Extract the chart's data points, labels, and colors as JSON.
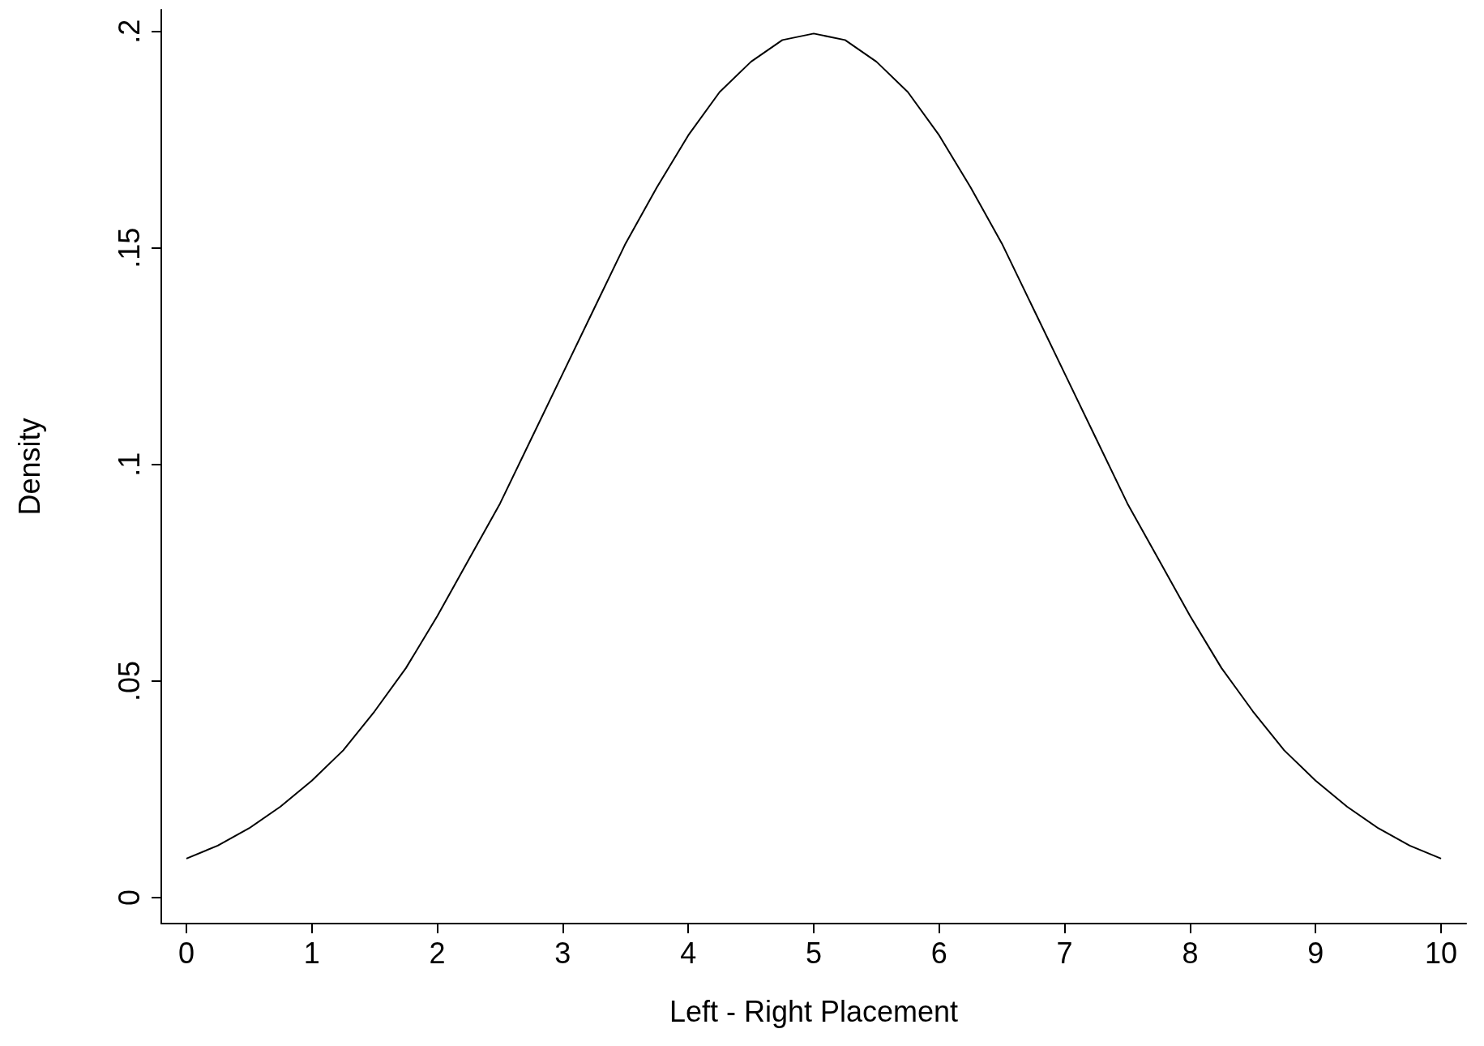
{
  "chart_data": {
    "type": "line",
    "xlabel": "Left - Right Placement",
    "ylabel": "Density",
    "x": [
      0,
      0.25,
      0.5,
      0.75,
      1,
      1.25,
      1.5,
      1.75,
      2,
      2.25,
      2.5,
      2.75,
      3,
      3.25,
      3.5,
      3.75,
      4,
      4.25,
      4.5,
      4.75,
      5,
      5.25,
      5.5,
      5.75,
      6,
      6.25,
      6.5,
      6.75,
      7,
      7.25,
      7.5,
      7.75,
      8,
      8.25,
      8.5,
      8.75,
      9,
      9.25,
      9.5,
      9.75,
      10
    ],
    "series": [
      {
        "color": "#000000",
        "values": [
          0.009,
          0.012,
          0.016,
          0.021,
          0.027,
          0.034,
          0.043,
          0.053,
          0.065,
          0.078,
          0.091,
          0.106,
          0.121,
          0.136,
          0.151,
          0.164,
          0.176,
          0.186,
          0.193,
          0.198,
          0.1995,
          0.198,
          0.193,
          0.186,
          0.176,
          0.164,
          0.151,
          0.136,
          0.121,
          0.106,
          0.091,
          0.078,
          0.065,
          0.053,
          0.043,
          0.034,
          0.027,
          0.021,
          0.016,
          0.012,
          0.009
        ]
      }
    ],
    "xlim": [
      -0.2,
      10.2
    ],
    "xticks": [
      0,
      1,
      2,
      3,
      4,
      5,
      6,
      7,
      8,
      9,
      10
    ],
    "ylim": [
      -0.006,
      0.205
    ],
    "yticks": [
      0,
      {
        "value": 0.05,
        "label": ".05"
      },
      {
        "value": 0.1,
        "label": ".1"
      },
      {
        "value": 0.15,
        "label": ".15"
      },
      {
        "value": 0.2,
        "label": ".2"
      }
    ],
    "grid": false,
    "marker": "none",
    "line_style": "solid"
  }
}
